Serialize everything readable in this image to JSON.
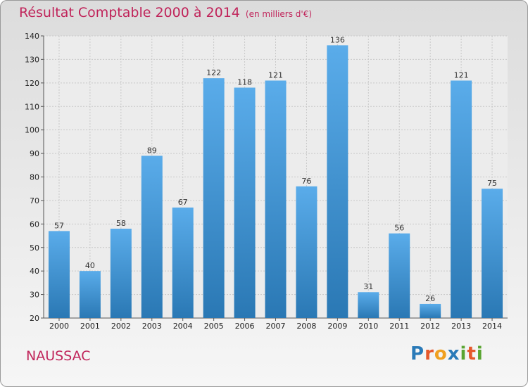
{
  "chart_data": {
    "type": "bar",
    "title": "Résultat Comptable 2000 à 2014",
    "subtitle": "(en milliers d'€)",
    "categories": [
      "2000",
      "2001",
      "2002",
      "2003",
      "2004",
      "2005",
      "2006",
      "2007",
      "2008",
      "2009",
      "2010",
      "2011",
      "2012",
      "2013",
      "2014"
    ],
    "values": [
      57,
      40,
      58,
      89,
      67,
      122,
      118,
      121,
      76,
      136,
      31,
      56,
      26,
      121,
      75
    ],
    "ylim": [
      20,
      140
    ],
    "yticks": [
      20,
      30,
      40,
      50,
      60,
      70,
      80,
      90,
      100,
      110,
      120,
      130,
      140
    ],
    "xlabel": "",
    "ylabel": "",
    "grid": true
  },
  "commune": "NAUSSAC",
  "logo": {
    "letters": [
      "P",
      "r",
      "o",
      "x",
      "i",
      "t",
      "i"
    ],
    "colors": [
      "#2a7ab8",
      "#e6582b",
      "#f0a020",
      "#2a7ab8",
      "#5aa532",
      "#e6582b",
      "#5aa532"
    ]
  },
  "colors": {
    "bar_top": "#5aacea",
    "bar_bottom": "#2a78b4",
    "accent": "#c0245a"
  }
}
